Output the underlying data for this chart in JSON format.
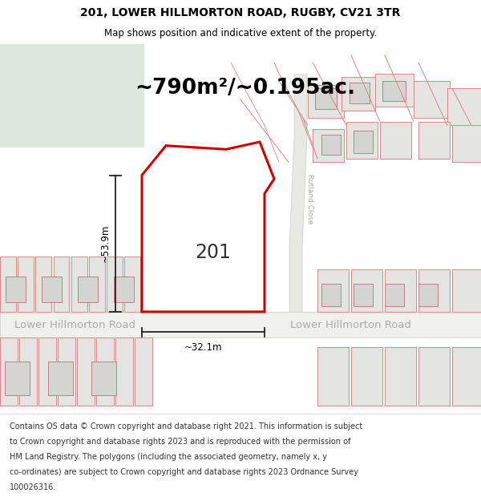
{
  "title_line1": "201, LOWER HILLMORTON ROAD, RUGBY, CV21 3TR",
  "title_line2": "Map shows position and indicative extent of the property.",
  "area_text": "~790m²/~0.195ac.",
  "label_201": "201",
  "dim_height_label": "~53.9m",
  "dim_width_label": "~32.1m",
  "road_label_left": "Lower Hillmorton Road",
  "road_label_right": "Lower Hillmorton Road",
  "rutland_close_label": "Rutland Close",
  "footer_lines": [
    "Contains OS data © Crown copyright and database right 2021. This information is subject",
    "to Crown copyright and database rights 2023 and is reproduced with the permission of",
    "HM Land Registry. The polygons (including the associated geometry, namely x, y",
    "co-ordinates) are subject to Crown copyright and database rights 2023 Ordnance Survey",
    "100026316."
  ],
  "map_bg": "#f7f7f2",
  "green_bg": "#dce8dc",
  "road_fill": "#f0f0ee",
  "road_edge": "#c8c8c8",
  "plot_fill": "#e4e4e2",
  "plot_edge": "#d88888",
  "inner_fill": "#d4d4d2",
  "inner_edge": "#c08080",
  "property_fill": "#ffffff",
  "property_edge": "#cc0000",
  "dim_color": "#222222",
  "road_text_color": "#aaaaaa",
  "rutland_text_color": "#aaaaaa",
  "text_color": "#222222"
}
